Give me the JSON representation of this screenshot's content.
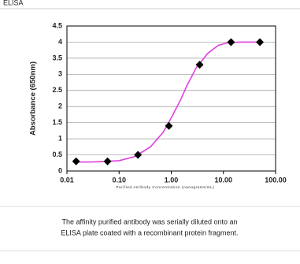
{
  "chart_data": {
    "type": "scatter",
    "title": "ELISA",
    "x_label": "Purified Antibody Concentration (nanograms/mL)",
    "y_label": "Absorbance (650nm)",
    "log_x": true,
    "grid": true,
    "xlim": [
      0.01,
      100
    ],
    "ylim": [
      0,
      4.5
    ],
    "xticks": [
      {
        "value": 0.01,
        "label": "0.01"
      },
      {
        "value": 0.1,
        "label": "0.10"
      },
      {
        "value": 1,
        "label": "1.00"
      },
      {
        "value": 10,
        "label": "10.00"
      },
      {
        "value": 100,
        "label": "100.00"
      }
    ],
    "yticks": [
      0,
      0.5,
      1,
      1.5,
      2,
      2.5,
      3,
      3.5,
      4,
      4.5
    ],
    "series": [
      {
        "color": "#000000",
        "x": [
          0.015,
          0.06,
          0.23,
          0.9,
          3.5,
          14,
          50
        ],
        "values": [
          0.3,
          0.3,
          0.5,
          1.4,
          3.3,
          4.0,
          4.0
        ]
      }
    ],
    "fit": {
      "color": "#e040e0",
      "x": [
        0.015,
        0.03,
        0.1,
        0.2,
        0.4,
        0.7,
        1,
        1.5,
        2,
        3,
        5,
        8,
        12,
        20,
        50
      ],
      "values": [
        0.28,
        0.28,
        0.32,
        0.45,
        0.75,
        1.2,
        1.65,
        2.2,
        2.65,
        3.2,
        3.65,
        3.9,
        3.98,
        4.0,
        4.0
      ]
    },
    "caption": [
      "The affinity purified antibody was serially diluted onto an",
      "ELISA plate coated with a recombinant protein fragment."
    ]
  }
}
